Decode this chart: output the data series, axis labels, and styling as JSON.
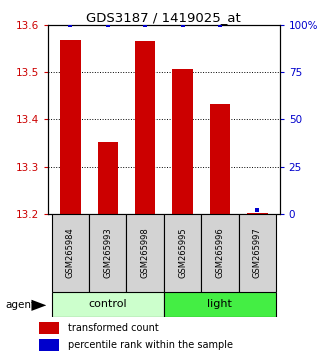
{
  "title": "GDS3187 / 1419025_at",
  "samples": [
    "GSM265984",
    "GSM265993",
    "GSM265998",
    "GSM265995",
    "GSM265996",
    "GSM265997"
  ],
  "groups": [
    "control",
    "control",
    "control",
    "light",
    "light",
    "light"
  ],
  "transformed_counts": [
    13.567,
    13.352,
    13.565,
    13.507,
    13.433,
    13.202
  ],
  "percentile_ranks": [
    100,
    100,
    100,
    100,
    100,
    2
  ],
  "ylim_left": [
    13.2,
    13.6
  ],
  "ylim_right": [
    0,
    100
  ],
  "yticks_left": [
    13.2,
    13.3,
    13.4,
    13.5,
    13.6
  ],
  "yticks_right": [
    0,
    25,
    50,
    75,
    100
  ],
  "ytick_labels_right": [
    "0",
    "25",
    "50",
    "75",
    "100%"
  ],
  "bar_color": "#cc0000",
  "dot_color": "#0000cc",
  "group_colors": {
    "control": "#ccffcc",
    "light": "#44ee44"
  },
  "bg_color": "#ffffff",
  "plot_bg": "#ffffff",
  "label_color_left": "#cc0000",
  "label_color_right": "#0000cc",
  "legend_bar_label": "transformed count",
  "legend_dot_label": "percentile rank within the sample",
  "agent_label": "agent",
  "bar_width": 0.55
}
